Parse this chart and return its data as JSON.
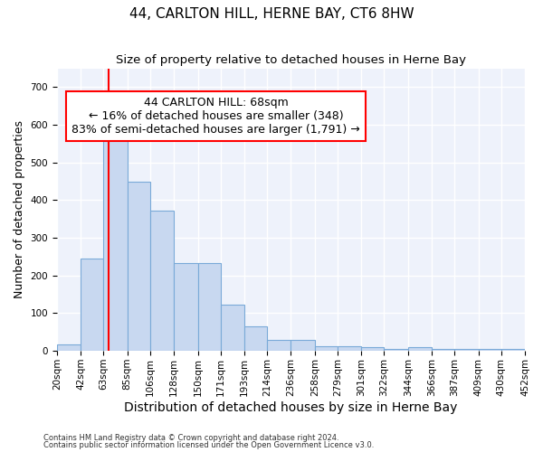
{
  "title": "44, CARLTON HILL, HERNE BAY, CT6 8HW",
  "subtitle": "Size of property relative to detached houses in Herne Bay",
  "xlabel": "Distribution of detached houses by size in Herne Bay",
  "ylabel": "Number of detached properties",
  "footnote1": "Contains HM Land Registry data © Crown copyright and database right 2024.",
  "footnote2": "Contains public sector information licensed under the Open Government Licence v3.0.",
  "annotation_title": "44 CARLTON HILL: 68sqm",
  "annotation_line1": "← 16% of detached houses are smaller (348)",
  "annotation_line2": "83% of semi-detached houses are larger (1,791) →",
  "property_size": 68,
  "bar_color": "#c8d8f0",
  "bar_edge_color": "#7aaad8",
  "vline_color": "red",
  "annotation_box_color": "red",
  "bin_edges": [
    20,
    42,
    63,
    85,
    106,
    128,
    150,
    171,
    193,
    214,
    236,
    258,
    279,
    301,
    322,
    344,
    366,
    387,
    409,
    430,
    452
  ],
  "bar_heights": [
    17,
    245,
    585,
    450,
    372,
    233,
    233,
    122,
    65,
    30,
    30,
    13,
    13,
    10,
    5,
    10,
    5,
    5,
    5,
    5
  ],
  "ylim": [
    0,
    750
  ],
  "yticks": [
    0,
    100,
    200,
    300,
    400,
    500,
    600,
    700
  ],
  "background_color": "#eef2fb",
  "grid_color": "#ffffff",
  "title_fontsize": 11,
  "subtitle_fontsize": 9.5,
  "ylabel_fontsize": 9,
  "xlabel_fontsize": 10,
  "tick_fontsize": 7.5,
  "annotation_fontsize": 9,
  "footnote_fontsize": 6
}
